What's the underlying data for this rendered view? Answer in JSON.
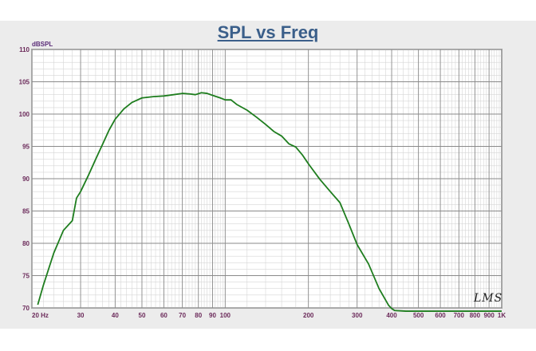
{
  "chart_data": {
    "type": "line",
    "title": "SPL vs Freq",
    "ylabel": "dBSPL",
    "xlabel": "",
    "x_scale": "log",
    "xlim": [
      20,
      1000
    ],
    "ylim": [
      70,
      110
    ],
    "grid": true,
    "x_ticks": [
      {
        "value": 20,
        "label": "20 Hz"
      },
      {
        "value": 30,
        "label": "30"
      },
      {
        "value": 40,
        "label": "40"
      },
      {
        "value": 50,
        "label": "50"
      },
      {
        "value": 60,
        "label": "60"
      },
      {
        "value": 70,
        "label": "70"
      },
      {
        "value": 80,
        "label": "80"
      },
      {
        "value": 90,
        "label": "90"
      },
      {
        "value": 100,
        "label": "100"
      },
      {
        "value": 200,
        "label": "200"
      },
      {
        "value": 300,
        "label": "300"
      },
      {
        "value": 400,
        "label": "400"
      },
      {
        "value": 500,
        "label": "500"
      },
      {
        "value": 600,
        "label": "600"
      },
      {
        "value": 700,
        "label": "700"
      },
      {
        "value": 800,
        "label": "800"
      },
      {
        "value": 900,
        "label": "900"
      },
      {
        "value": 1000,
        "label": "1K"
      }
    ],
    "y_ticks": [
      70,
      75,
      80,
      85,
      90,
      95,
      100,
      105,
      110
    ],
    "series": [
      {
        "color": "#1e7d1e",
        "x": [
          21,
          22,
          24,
          26,
          28,
          29,
          30,
          32,
          34,
          36,
          38,
          40,
          43,
          46,
          50,
          55,
          60,
          65,
          70,
          75,
          78,
          82,
          86,
          90,
          96,
          100,
          105,
          110,
          120,
          130,
          140,
          150,
          160,
          170,
          180,
          190,
          200,
          220,
          240,
          260,
          280,
          300,
          330,
          360,
          390,
          400,
          410,
          450,
          500,
          600,
          700,
          800,
          900,
          1000
        ],
        "y": [
          70.5,
          73.5,
          78.5,
          82,
          83.5,
          87,
          88,
          90.5,
          93,
          95.3,
          97.5,
          99.2,
          100.8,
          101.8,
          102.5,
          102.7,
          102.8,
          103,
          103.2,
          103.1,
          103.0,
          103.3,
          103.2,
          102.9,
          102.5,
          102.2,
          102.2,
          101.5,
          100.6,
          99.5,
          98.4,
          97.3,
          96.6,
          95.4,
          94.9,
          93.7,
          92.3,
          89.9,
          88.0,
          86.3,
          83.0,
          79.8,
          76.8,
          73.0,
          70.4,
          69.9,
          69.6,
          69.5,
          69.5,
          69.5,
          69.5,
          69.5,
          69.5,
          69.5
        ]
      }
    ]
  },
  "watermark": "LMS"
}
